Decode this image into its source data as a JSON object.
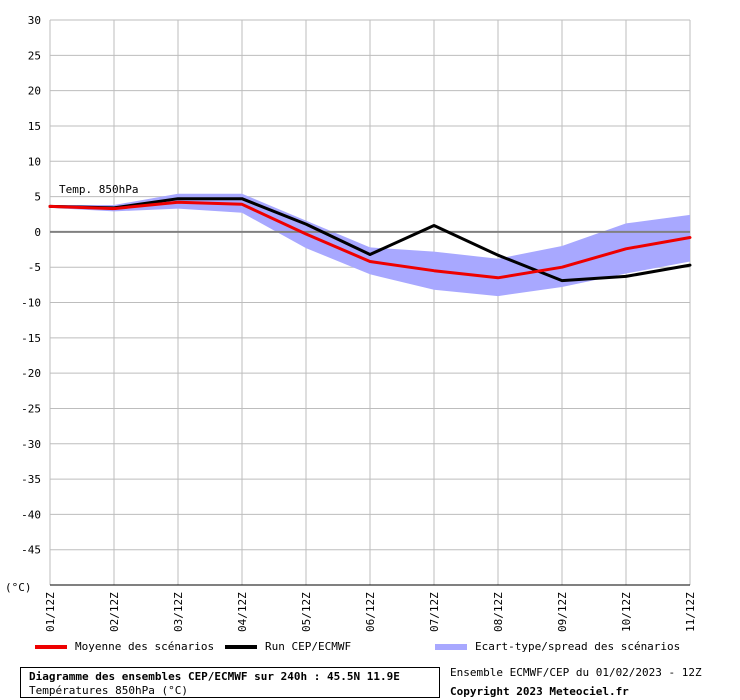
{
  "chart_data": {
    "type": "line",
    "y_unit_label": "(°C)",
    "ylim": [
      -50,
      30
    ],
    "yticks": [
      30,
      25,
      20,
      15,
      10,
      5,
      0,
      -5,
      -10,
      -15,
      -20,
      -25,
      -30,
      -35,
      -40,
      -45
    ],
    "x": [
      "01/12Z",
      "02/12Z",
      "03/12Z",
      "04/12Z",
      "05/12Z",
      "06/12Z",
      "07/12Z",
      "08/12Z",
      "09/12Z",
      "10/12Z",
      "11/12Z"
    ],
    "grid": true,
    "annotation": "Temp. 850hPa",
    "series": [
      {
        "name": "Moyenne des scénarios",
        "color": "#ee0000",
        "values": [
          3.6,
          3.3,
          4.2,
          3.9,
          -0.3,
          -4.2,
          -5.5,
          -6.5,
          -5.0,
          -2.4,
          -0.8
        ]
      },
      {
        "name": "Run CEP/ECMWF",
        "color": "#000000",
        "values": [
          3.6,
          3.4,
          4.7,
          4.7,
          1.1,
          -3.2,
          0.9,
          -3.3,
          -6.9,
          -6.3,
          -4.7
        ]
      }
    ],
    "band": {
      "name": "Ecart-type/spread des scénarios",
      "color": "#a8a8ff",
      "upper": [
        3.8,
        3.8,
        5.4,
        5.4,
        1.6,
        -2.2,
        -2.8,
        -3.8,
        -2.0,
        1.2,
        2.4
      ],
      "lower": [
        3.4,
        2.9,
        3.3,
        2.7,
        -2.3,
        -6.0,
        -8.2,
        -9.1,
        -7.8,
        -5.9,
        -4.2
      ]
    }
  },
  "footer": {
    "title": "Diagramme des ensembles CEP/ECMWF sur 240h : 45.5N 11.9E",
    "subtitle": "Températures 850hPa (°C)",
    "ensemble_info": "Ensemble ECMWF/CEP du 01/02/2023 - 12Z",
    "copyright": "Copyright 2023 Meteociel.fr"
  }
}
